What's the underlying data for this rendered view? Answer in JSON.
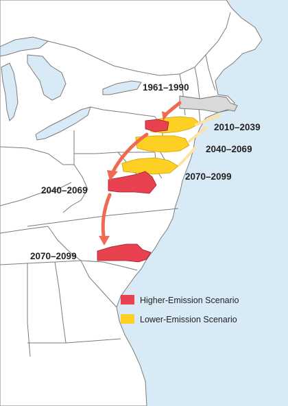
{
  "colors": {
    "ocean": "#d9eaf7",
    "land": "#ffffff",
    "state_border": "#7a7a7a",
    "baseline_state": "#d9d9d9",
    "higher_emission": "#e8414f",
    "lower_emission": "#fdd023",
    "arrow_higher": "#f06a52",
    "arrow_lower": "#fde3a0"
  },
  "labels": {
    "baseline": "1961–1990",
    "lower_2010": "2010–2039",
    "lower_2040": "2040–2069",
    "lower_2070": "2070–2099",
    "higher_2040": "2040–2069",
    "higher_2070": "2070–2099"
  },
  "legend": {
    "higher_label": "Higher-Emission Scenario",
    "lower_label": "Lower-Emission Scenario"
  }
}
